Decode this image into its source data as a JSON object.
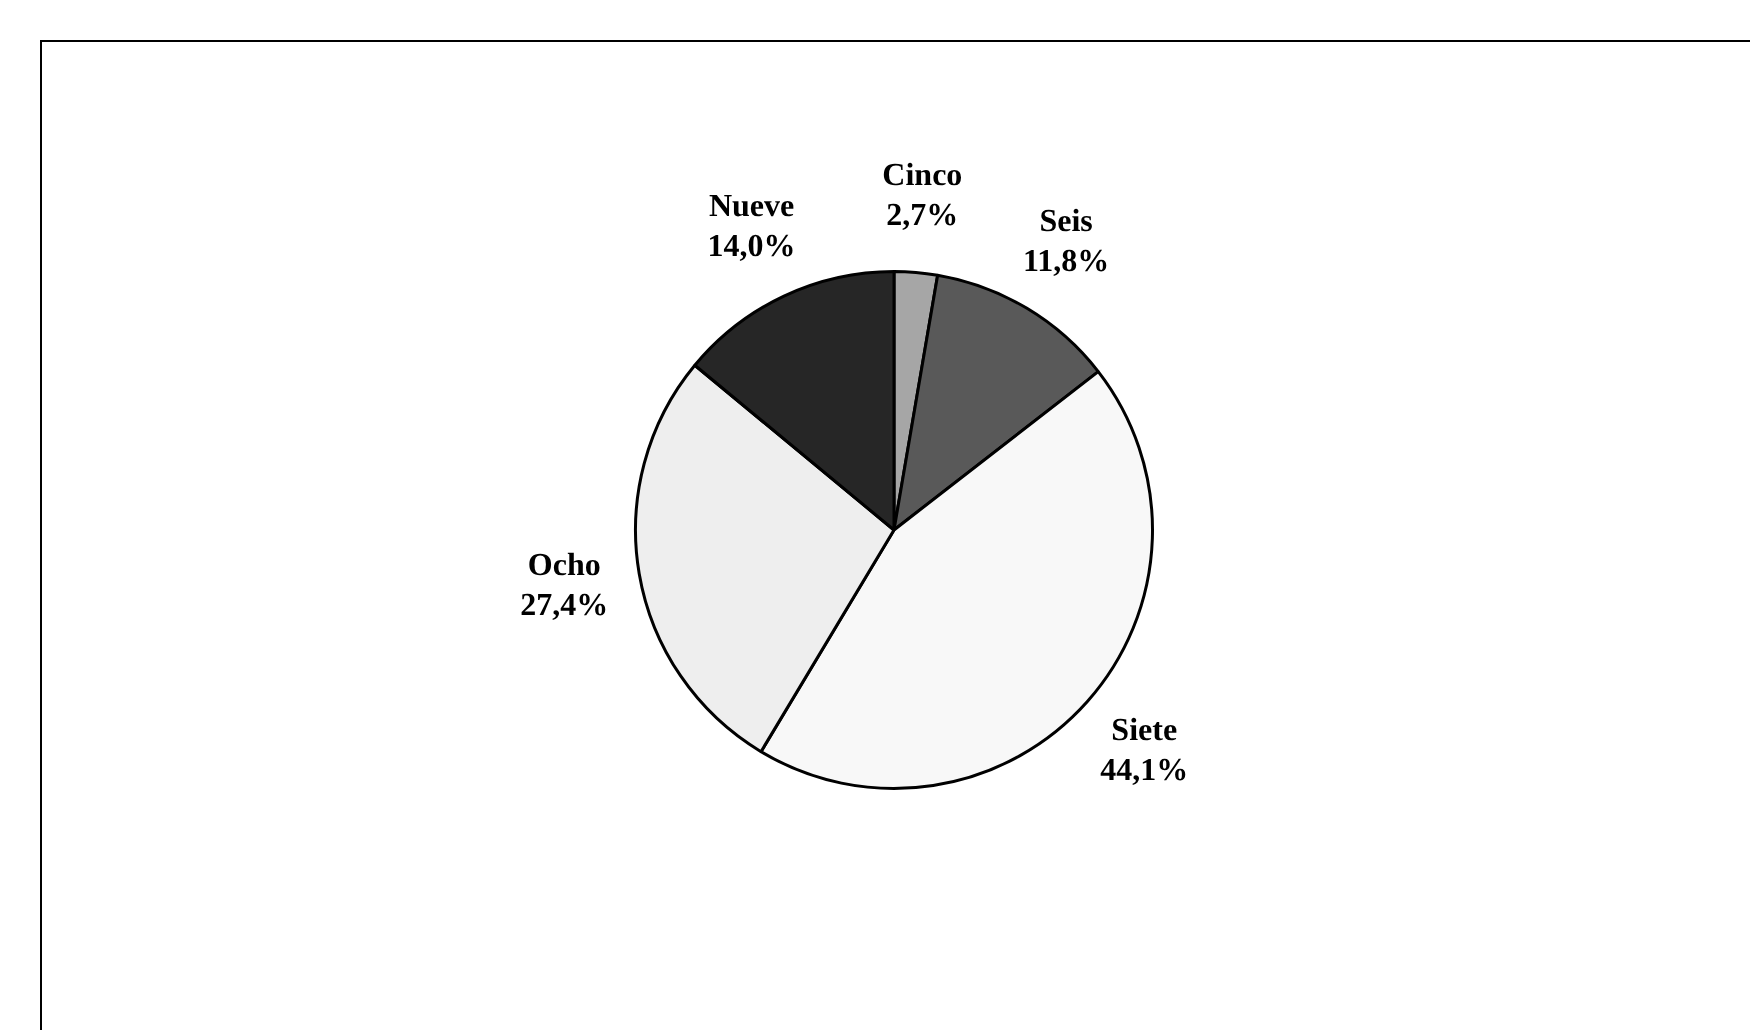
{
  "chart_data": {
    "type": "pie",
    "categories": [
      "Cinco",
      "Seis",
      "Siete",
      "Ocho",
      "Nueve"
    ],
    "values": [
      2.7,
      11.8,
      44.1,
      27.4,
      14.0
    ],
    "value_labels": [
      "2,7%",
      "11,8%",
      "44,1%",
      "27,4%",
      "14,0%"
    ],
    "colors": [
      "#a6a6a6",
      "#595959",
      "#f8f8f8",
      "#eeeeee",
      "#262626"
    ],
    "legend": false
  }
}
